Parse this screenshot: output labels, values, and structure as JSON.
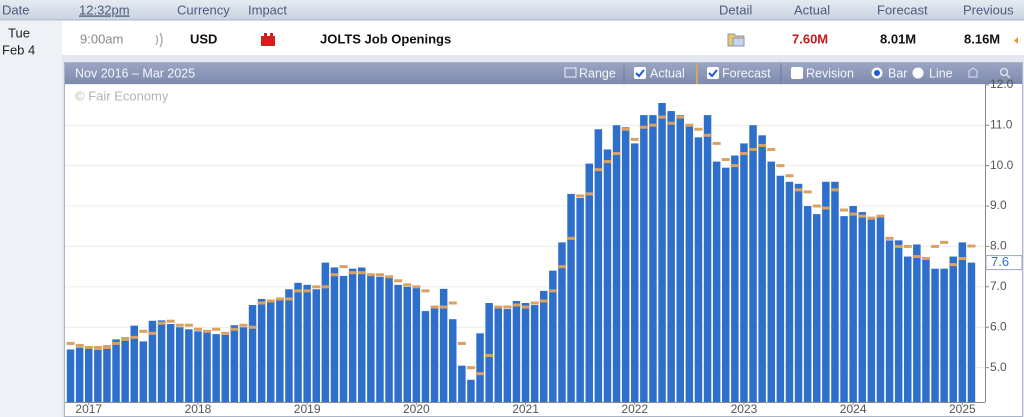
{
  "calendar": {
    "header": {
      "date": "Date",
      "time": "12:32pm",
      "currency": "Currency",
      "impact": "Impact",
      "detail": "Detail",
      "actual": "Actual",
      "forecast": "Forecast",
      "previous": "Previous"
    },
    "event": {
      "day": "Tue",
      "date": "Feb 4",
      "time": "9:00am",
      "currency": "USD",
      "title": "JOLTS Job Openings",
      "actual": "7.60M",
      "forecast": "8.01M",
      "previous": "8.16M"
    }
  },
  "chart_toolbar": {
    "range_text": "Nov 2016 – Mar 2025",
    "range": "Range",
    "actual": "Actual",
    "forecast": "Forecast",
    "revision": "Revision",
    "bar": "Bar",
    "line": "Line"
  },
  "chart_data": {
    "type": "bar",
    "watermark": "© Fair Economy",
    "categories": [
      null,
      null,
      "2017",
      null,
      null,
      null,
      null,
      null,
      null,
      null,
      null,
      null,
      null,
      null,
      "2018",
      null,
      null,
      null,
      null,
      null,
      null,
      null,
      null,
      null,
      null,
      null,
      "2019",
      null,
      null,
      null,
      null,
      null,
      null,
      null,
      null,
      null,
      null,
      null,
      "2020",
      null,
      null,
      null,
      null,
      null,
      null,
      null,
      null,
      null,
      null,
      null,
      "2021",
      null,
      null,
      null,
      null,
      null,
      null,
      null,
      null,
      null,
      null,
      null,
      "2022",
      null,
      null,
      null,
      null,
      null,
      null,
      null,
      null,
      null,
      null,
      null,
      "2023",
      null,
      null,
      null,
      null,
      null,
      null,
      null,
      null,
      null,
      null,
      null,
      "2024",
      null,
      null,
      null,
      null,
      null,
      null,
      null,
      null,
      null,
      null,
      null,
      "2025",
      null
    ],
    "series": [
      {
        "name": "Actual",
        "color": "#2f6fcc",
        "values": [
          5.45,
          5.5,
          5.5,
          5.45,
          5.55,
          5.7,
          5.75,
          6.04,
          5.65,
          6.16,
          6.17,
          6.08,
          6.0,
          5.95,
          5.9,
          5.91,
          5.83,
          5.81,
          6.05,
          6.0,
          6.55,
          6.7,
          6.66,
          6.7,
          6.94,
          7.1,
          7.05,
          6.94,
          7.6,
          7.48,
          7.27,
          7.45,
          7.48,
          7.3,
          7.25,
          7.25,
          7.05,
          7.0,
          7.0,
          6.4,
          6.5,
          6.95,
          6.2,
          5.05,
          4.7,
          5.85,
          6.6,
          6.5,
          6.45,
          6.65,
          6.6,
          6.55,
          6.9,
          7.4,
          8.1,
          9.3,
          9.2,
          10.05,
          10.9,
          10.4,
          11.0,
          10.95,
          10.55,
          11.25,
          11.25,
          11.55,
          11.35,
          11.25,
          11.0,
          10.7,
          11.25,
          10.1,
          9.95,
          10.25,
          10.55,
          11.0,
          10.75,
          10.1,
          9.75,
          9.6,
          9.55,
          9.0,
          8.8,
          9.6,
          9.6,
          8.75,
          9.0,
          8.85,
          8.7,
          8.75,
          8.15,
          8.15,
          7.75,
          8.05,
          7.7,
          7.45,
          7.45,
          7.75,
          8.1,
          7.6
        ]
      },
      {
        "name": "Forecast",
        "color": "#d9a262",
        "values": [
          5.6,
          5.55,
          5.5,
          5.5,
          5.5,
          5.6,
          5.7,
          5.75,
          5.9,
          5.85,
          6.1,
          6.15,
          6.05,
          6.05,
          5.95,
          5.9,
          5.95,
          5.85,
          5.95,
          6.05,
          6.0,
          6.6,
          6.65,
          6.7,
          6.7,
          6.9,
          6.9,
          7.0,
          7.0,
          7.3,
          7.5,
          7.35,
          7.35,
          7.3,
          7.3,
          7.25,
          7.15,
          7.05,
          7.0,
          6.9,
          6.5,
          6.5,
          6.6,
          5.6,
          5.0,
          4.85,
          5.3,
          6.5,
          6.5,
          6.55,
          6.5,
          6.6,
          6.65,
          6.9,
          7.5,
          8.2,
          9.25,
          9.3,
          9.9,
          10.1,
          10.3,
          10.9,
          10.65,
          10.95,
          11.0,
          11.2,
          11.05,
          11.2,
          11.0,
          10.9,
          10.75,
          10.55,
          10.15,
          10.0,
          10.3,
          10.4,
          10.5,
          10.4,
          10.0,
          9.75,
          9.4,
          9.35,
          9.0,
          8.95,
          9.4,
          8.9,
          8.8,
          8.75,
          8.7,
          8.75,
          8.2,
          8.0,
          8.0,
          7.75,
          7.7,
          8.0,
          8.1,
          7.55,
          7.7,
          8.01
        ]
      }
    ],
    "ylim": [
      4.15,
      12.02
    ],
    "yticks": [
      {
        "value": 5,
        "label": "5.0"
      },
      {
        "value": 6,
        "label": "6.0"
      },
      {
        "value": 7,
        "label": "7.0"
      },
      {
        "value": 8,
        "label": "8.0"
      },
      {
        "value": 9,
        "label": "9.0"
      },
      {
        "value": 10,
        "label": "10.0"
      },
      {
        "value": 11,
        "label": "11.0"
      },
      {
        "value": 12,
        "label": "12.0"
      }
    ],
    "current_marker": {
      "value": 7.6,
      "label": "7.6"
    },
    "grid": true
  }
}
